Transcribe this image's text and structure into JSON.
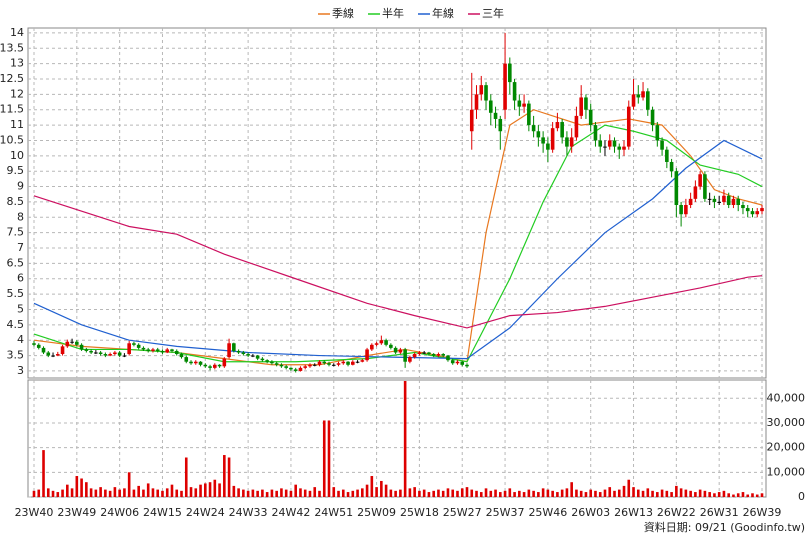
{
  "chart_data": {
    "type": "candlestick",
    "footer": "資料日期: 09/21 (Goodinfo.tw)",
    "grid": true,
    "up_color": "#e00000",
    "down_color": "#008800",
    "ylim": [
      2.77,
      14.16
    ],
    "yticks": [
      3,
      3.5,
      4,
      4.5,
      5,
      5.5,
      6,
      6.5,
      7,
      7.5,
      8,
      8.5,
      9,
      9.5,
      10,
      10.5,
      11,
      11.5,
      12,
      12.5,
      13,
      13.5,
      14
    ],
    "categories": [
      "23W40",
      null,
      null,
      null,
      null,
      null,
      null,
      null,
      null,
      "23W49",
      null,
      null,
      null,
      null,
      null,
      null,
      null,
      null,
      "24W06",
      null,
      null,
      null,
      null,
      null,
      null,
      null,
      null,
      "24W15",
      null,
      null,
      null,
      null,
      null,
      null,
      null,
      null,
      "24W24",
      null,
      null,
      null,
      null,
      null,
      null,
      null,
      null,
      "24W33",
      null,
      null,
      null,
      null,
      null,
      null,
      null,
      null,
      "24W42",
      null,
      null,
      null,
      null,
      null,
      null,
      null,
      null,
      "24W51",
      null,
      null,
      null,
      null,
      null,
      null,
      null,
      null,
      "25W09",
      null,
      null,
      null,
      null,
      null,
      null,
      null,
      null,
      "25W18",
      null,
      null,
      null,
      null,
      null,
      null,
      null,
      null,
      "25W27",
      null,
      null,
      null,
      null,
      null,
      null,
      null,
      null,
      "25W37",
      null,
      null,
      null,
      null,
      null,
      null,
      null,
      null,
      "25W46",
      null,
      null,
      null,
      null,
      null,
      null,
      null,
      null,
      "26W03",
      null,
      null,
      null,
      null,
      null,
      null,
      null,
      null,
      "26W13",
      null,
      null,
      null,
      null,
      null,
      null,
      null,
      null,
      "26W22",
      null,
      null,
      null,
      null,
      null,
      null,
      null,
      null,
      "26W31",
      null,
      null,
      null,
      null,
      null,
      null,
      null,
      null,
      "26W39"
    ],
    "candles": [
      [
        3.9,
        3.98,
        3.8,
        3.85
      ],
      [
        3.85,
        3.9,
        3.7,
        3.75
      ],
      [
        3.75,
        3.8,
        3.55,
        3.6
      ],
      [
        3.6,
        3.65,
        3.45,
        3.5
      ],
      [
        3.5,
        3.6,
        3.45,
        3.5
      ],
      [
        3.5,
        3.62,
        3.48,
        3.55
      ],
      [
        3.55,
        3.85,
        3.5,
        3.8
      ],
      [
        3.8,
        4.02,
        3.75,
        3.95
      ],
      [
        3.95,
        4.05,
        3.88,
        3.95
      ],
      [
        3.95,
        4.0,
        3.8,
        3.85
      ],
      [
        3.85,
        3.9,
        3.65,
        3.7
      ],
      [
        3.7,
        3.75,
        3.6,
        3.65
      ],
      [
        3.65,
        3.7,
        3.55,
        3.6
      ],
      [
        3.6,
        3.68,
        3.55,
        3.6
      ],
      [
        3.6,
        3.65,
        3.5,
        3.55
      ],
      [
        3.55,
        3.6,
        3.45,
        3.5
      ],
      [
        3.5,
        3.6,
        3.48,
        3.55
      ],
      [
        3.55,
        3.65,
        3.5,
        3.6
      ],
      [
        3.6,
        3.65,
        3.45,
        3.5
      ],
      [
        3.5,
        3.58,
        3.45,
        3.5
      ],
      [
        3.55,
        3.98,
        3.5,
        3.9
      ],
      [
        3.9,
        3.95,
        3.8,
        3.85
      ],
      [
        3.85,
        3.9,
        3.7,
        3.75
      ],
      [
        3.75,
        3.8,
        3.65,
        3.7
      ],
      [
        3.7,
        3.75,
        3.6,
        3.65
      ],
      [
        3.65,
        3.75,
        3.6,
        3.7
      ],
      [
        3.7,
        3.75,
        3.6,
        3.65
      ],
      [
        3.65,
        3.7,
        3.55,
        3.6
      ],
      [
        3.6,
        3.75,
        3.58,
        3.7
      ],
      [
        3.7,
        3.72,
        3.6,
        3.65
      ],
      [
        3.65,
        3.7,
        3.5,
        3.55
      ],
      [
        3.55,
        3.6,
        3.4,
        3.45
      ],
      [
        3.45,
        3.5,
        3.25,
        3.3
      ],
      [
        3.3,
        3.35,
        3.2,
        3.25
      ],
      [
        3.25,
        3.35,
        3.2,
        3.3
      ],
      [
        3.3,
        3.32,
        3.15,
        3.2
      ],
      [
        3.2,
        3.25,
        3.1,
        3.15
      ],
      [
        3.15,
        3.2,
        3.02,
        3.1
      ],
      [
        3.1,
        3.25,
        3.05,
        3.2
      ],
      [
        3.2,
        3.22,
        3.1,
        3.15
      ],
      [
        3.15,
        3.45,
        3.1,
        3.4
      ],
      [
        3.45,
        4.05,
        3.4,
        3.9
      ],
      [
        3.9,
        3.92,
        3.6,
        3.65
      ],
      [
        3.65,
        3.7,
        3.55,
        3.6
      ],
      [
        3.6,
        3.65,
        3.5,
        3.55
      ],
      [
        3.55,
        3.6,
        3.45,
        3.5
      ],
      [
        3.5,
        3.55,
        3.45,
        3.5
      ],
      [
        3.5,
        3.52,
        3.35,
        3.4
      ],
      [
        3.4,
        3.45,
        3.3,
        3.35
      ],
      [
        3.35,
        3.38,
        3.25,
        3.3
      ],
      [
        3.3,
        3.35,
        3.2,
        3.25
      ],
      [
        3.25,
        3.3,
        3.15,
        3.2
      ],
      [
        3.2,
        3.25,
        3.1,
        3.15
      ],
      [
        3.15,
        3.2,
        3.05,
        3.1
      ],
      [
        3.1,
        3.12,
        3.0,
        3.05
      ],
      [
        3.05,
        3.1,
        2.95,
        3.0
      ],
      [
        3.0,
        3.15,
        2.98,
        3.1
      ],
      [
        3.1,
        3.2,
        3.05,
        3.15
      ],
      [
        3.15,
        3.25,
        3.1,
        3.2
      ],
      [
        3.2,
        3.25,
        3.15,
        3.2
      ],
      [
        3.2,
        3.35,
        3.15,
        3.3
      ],
      [
        3.3,
        3.35,
        3.2,
        3.25
      ],
      [
        3.25,
        3.3,
        3.15,
        3.2
      ],
      [
        3.2,
        3.25,
        3.15,
        3.2
      ],
      [
        3.2,
        3.3,
        3.15,
        3.25
      ],
      [
        3.25,
        3.35,
        3.2,
        3.3
      ],
      [
        3.3,
        3.32,
        3.15,
        3.2
      ],
      [
        3.2,
        3.35,
        3.18,
        3.3
      ],
      [
        3.3,
        3.35,
        3.25,
        3.3
      ],
      [
        3.3,
        3.4,
        3.28,
        3.35
      ],
      [
        3.35,
        3.75,
        3.3,
        3.7
      ],
      [
        3.7,
        3.9,
        3.65,
        3.85
      ],
      [
        3.85,
        3.95,
        3.8,
        3.9
      ],
      [
        3.9,
        4.15,
        3.85,
        4.0
      ],
      [
        4.0,
        4.05,
        3.8,
        3.85
      ],
      [
        3.85,
        3.9,
        3.7,
        3.75
      ],
      [
        3.75,
        3.8,
        3.55,
        3.6
      ],
      [
        3.6,
        3.75,
        3.55,
        3.7
      ],
      [
        3.7,
        3.75,
        3.1,
        3.3
      ],
      [
        3.3,
        3.5,
        3.25,
        3.45
      ],
      [
        3.45,
        3.6,
        3.4,
        3.55
      ],
      [
        3.55,
        3.65,
        3.5,
        3.6
      ],
      [
        3.6,
        3.65,
        3.55,
        3.6
      ],
      [
        3.6,
        3.62,
        3.5,
        3.55
      ],
      [
        3.55,
        3.58,
        3.45,
        3.5
      ],
      [
        3.5,
        3.6,
        3.45,
        3.55
      ],
      [
        3.55,
        3.58,
        3.45,
        3.5
      ],
      [
        3.5,
        3.52,
        3.3,
        3.35
      ],
      [
        3.35,
        3.4,
        3.2,
        3.25
      ],
      [
        3.25,
        3.35,
        3.2,
        3.3
      ],
      [
        3.3,
        3.32,
        3.15,
        3.2
      ],
      [
        3.2,
        3.25,
        3.1,
        3.15
      ],
      [
        10.8,
        12.7,
        10.2,
        11.5
      ],
      [
        11.5,
        12.3,
        11.2,
        12.0
      ],
      [
        12.0,
        12.6,
        11.8,
        12.3
      ],
      [
        12.3,
        12.4,
        11.5,
        11.8
      ],
      [
        11.8,
        12.0,
        11.0,
        11.4
      ],
      [
        11.4,
        11.6,
        10.9,
        11.2
      ],
      [
        11.2,
        11.3,
        10.2,
        10.8
      ],
      [
        11.5,
        14.0,
        11.2,
        13.0
      ],
      [
        13.0,
        13.2,
        12.0,
        12.4
      ],
      [
        12.4,
        12.5,
        11.5,
        11.8
      ],
      [
        11.8,
        12.0,
        11.3,
        11.6
      ],
      [
        11.6,
        12.0,
        11.4,
        11.7
      ],
      [
        11.7,
        11.8,
        10.8,
        11.0
      ],
      [
        11.0,
        11.3,
        10.6,
        10.8
      ],
      [
        10.8,
        11.0,
        10.3,
        10.6
      ],
      [
        10.6,
        10.8,
        10.1,
        10.4
      ],
      [
        10.4,
        10.6,
        9.8,
        10.2
      ],
      [
        10.2,
        11.1,
        10.1,
        10.9
      ],
      [
        10.9,
        11.4,
        10.8,
        11.1
      ],
      [
        11.1,
        11.2,
        10.4,
        10.6
      ],
      [
        10.6,
        10.8,
        10.0,
        10.3
      ],
      [
        10.3,
        10.9,
        10.1,
        10.6
      ],
      [
        10.6,
        11.6,
        10.5,
        11.3
      ],
      [
        11.3,
        12.3,
        11.2,
        11.9
      ],
      [
        11.9,
        12.0,
        11.2,
        11.5
      ],
      [
        11.5,
        11.7,
        10.8,
        11.0
      ],
      [
        11.0,
        11.1,
        10.3,
        10.5
      ],
      [
        10.5,
        10.7,
        10.1,
        10.3
      ],
      [
        10.3,
        10.5,
        10.0,
        10.3
      ],
      [
        10.3,
        10.7,
        10.2,
        10.5
      ],
      [
        10.5,
        10.6,
        10.1,
        10.3
      ],
      [
        10.3,
        10.4,
        9.9,
        10.2
      ],
      [
        10.2,
        10.5,
        10.0,
        10.3
      ],
      [
        10.3,
        11.8,
        10.2,
        11.6
      ],
      [
        11.6,
        12.5,
        11.5,
        12.0
      ],
      [
        12.0,
        12.3,
        11.7,
        11.9
      ],
      [
        11.9,
        12.4,
        11.8,
        12.1
      ],
      [
        12.1,
        12.2,
        11.3,
        11.5
      ],
      [
        11.5,
        11.6,
        10.8,
        11.0
      ],
      [
        11.0,
        11.1,
        10.3,
        10.5
      ],
      [
        10.5,
        10.6,
        10.0,
        10.2
      ],
      [
        10.2,
        10.3,
        9.6,
        9.8
      ],
      [
        9.8,
        9.9,
        9.3,
        9.5
      ],
      [
        9.5,
        9.6,
        8.0,
        8.4
      ],
      [
        8.4,
        8.5,
        7.7,
        8.1
      ],
      [
        8.1,
        8.6,
        8.0,
        8.4
      ],
      [
        8.4,
        8.8,
        8.3,
        8.6
      ],
      [
        8.6,
        9.2,
        8.5,
        9.0
      ],
      [
        9.0,
        9.5,
        8.9,
        9.4
      ],
      [
        9.4,
        9.5,
        8.5,
        8.6
      ],
      [
        8.6,
        8.8,
        8.4,
        8.6
      ],
      [
        8.6,
        8.7,
        8.3,
        8.5
      ],
      [
        8.5,
        8.7,
        8.4,
        8.5
      ],
      [
        8.5,
        8.9,
        8.4,
        8.7
      ],
      [
        8.7,
        8.8,
        8.3,
        8.4
      ],
      [
        8.4,
        8.7,
        8.3,
        8.6
      ],
      [
        8.6,
        8.7,
        8.2,
        8.4
      ],
      [
        8.4,
        8.5,
        8.1,
        8.3
      ],
      [
        8.3,
        8.4,
        8.0,
        8.2
      ],
      [
        8.2,
        8.3,
        8.0,
        8.1
      ],
      [
        8.1,
        8.3,
        8.0,
        8.2
      ],
      [
        8.2,
        8.4,
        8.1,
        8.3
      ]
    ],
    "series": [
      {
        "name": "季線",
        "color": "#e87820",
        "x": [
          0,
          10,
          20,
          30,
          40,
          50,
          60,
          70,
          78,
          85,
          91,
          95,
          100,
          105,
          115,
          125,
          132,
          138,
          143,
          148,
          153
        ],
        "values": [
          4.0,
          3.8,
          3.7,
          3.6,
          3.4,
          3.2,
          3.2,
          3.5,
          3.7,
          3.5,
          3.3,
          7.5,
          11.0,
          11.5,
          11.0,
          11.2,
          11.0,
          10.0,
          8.9,
          8.6,
          8.4
        ]
      },
      {
        "name": "半年",
        "color": "#22cc22",
        "x": [
          0,
          10,
          20,
          30,
          40,
          55,
          70,
          80,
          91,
          100,
          107,
          113,
          120,
          126,
          133,
          140,
          148,
          153
        ],
        "values": [
          4.2,
          3.7,
          3.7,
          3.6,
          3.3,
          3.3,
          3.4,
          3.6,
          3.3,
          6.0,
          8.5,
          10.3,
          11.0,
          10.8,
          10.5,
          9.7,
          9.4,
          9.0
        ]
      },
      {
        "name": "年線",
        "color": "#2060d0",
        "x": [
          0,
          10,
          20,
          30,
          45,
          60,
          75,
          91,
          100,
          110,
          120,
          130,
          137,
          145,
          153
        ],
        "values": [
          5.2,
          4.5,
          4.0,
          3.8,
          3.6,
          3.5,
          3.45,
          3.4,
          4.4,
          6.0,
          7.5,
          8.6,
          9.6,
          10.5,
          9.9
        ]
      },
      {
        "name": "三年",
        "color": "#cc1060",
        "x": [
          0,
          20,
          30,
          40,
          55,
          70,
          80,
          91,
          100,
          110,
          120,
          130,
          140,
          150,
          153
        ],
        "values": [
          8.7,
          7.7,
          7.45,
          6.8,
          6.0,
          5.2,
          4.8,
          4.4,
          4.8,
          4.9,
          5.1,
          5.4,
          5.7,
          6.05,
          6.1
        ]
      }
    ],
    "volume": {
      "color": "#dd0000",
      "ylim": [
        0,
        47400
      ],
      "yticks": [
        0,
        {
          "value": 10000,
          "label": "10,000"
        },
        {
          "value": 20000,
          "label": "20,000"
        },
        {
          "value": 30000,
          "label": "30,000"
        },
        {
          "value": 40000,
          "label": "40,000"
        }
      ],
      "values": [
        2500,
        3000,
        19000,
        3500,
        2500,
        2000,
        3000,
        5000,
        3500,
        8500,
        7500,
        6000,
        3500,
        3000,
        4000,
        3000,
        2500,
        4000,
        3000,
        3500,
        10000,
        3000,
        4500,
        3000,
        5500,
        3500,
        3000,
        2500,
        3500,
        5000,
        3000,
        2500,
        16000,
        4000,
        3500,
        5000,
        5500,
        6000,
        7000,
        5500,
        17000,
        16000,
        4500,
        3500,
        3000,
        2500,
        3000,
        2500,
        3000,
        2000,
        3000,
        2500,
        3500,
        3000,
        2500,
        5000,
        3500,
        3000,
        2500,
        4000,
        2500,
        31000,
        31000,
        4000,
        2500,
        3000,
        2000,
        2500,
        3000,
        3500,
        5000,
        8500,
        4000,
        6500,
        5000,
        3000,
        2500,
        3000,
        47000,
        3500,
        4000,
        2500,
        3000,
        2000,
        2500,
        3000,
        2500,
        3500,
        3000,
        2500,
        3500,
        4000,
        3000,
        2500,
        2000,
        3500,
        2500,
        3000,
        2000,
        2500,
        3500,
        2000,
        2500,
        2000,
        3000,
        2500,
        2000,
        3500,
        3000,
        2500,
        2000,
        3000,
        3500,
        6000,
        3000,
        2500,
        2000,
        3000,
        2500,
        2000,
        3000,
        4000,
        2500,
        3000,
        4500,
        7000,
        4000,
        3000,
        2500,
        3500,
        2500,
        2000,
        3000,
        2500,
        2000,
        4500,
        3500,
        3000,
        2500,
        2000,
        3000,
        2500,
        2000,
        1500,
        2000,
        2500,
        1500,
        1000,
        1500,
        2000,
        1000,
        1500,
        1000,
        1500
      ]
    }
  }
}
